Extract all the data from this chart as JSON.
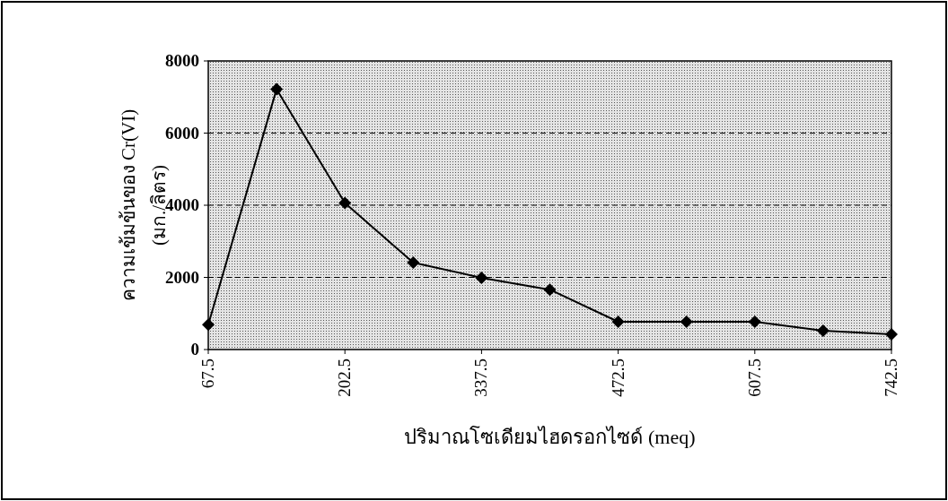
{
  "chart_data": {
    "type": "line",
    "xlabel": "ปริมาณโซเดียมไฮดรอกไซด์ (meq)",
    "ylabel": "ความเข้มข้นของ Cr(VI)\n(มก./ลิตร)",
    "x": [
      67.5,
      135,
      202.5,
      270,
      337.5,
      405,
      472.5,
      540,
      607.5,
      675,
      742.5
    ],
    "series": [
      {
        "color": "#000000",
        "values": [
          690,
          7220,
          4060,
          2410,
          1990,
          1660,
          770,
          770,
          770,
          520,
          420
        ]
      }
    ],
    "xlim": [
      67.5,
      742.5
    ],
    "xticks": [
      67.5,
      202.5,
      337.5,
      472.5,
      607.5,
      742.5
    ],
    "ylim": [
      0,
      8000
    ],
    "yticks": [
      0,
      2000,
      4000,
      6000,
      8000
    ],
    "grid": "y",
    "marker": "diamond",
    "line_style": "solid"
  }
}
